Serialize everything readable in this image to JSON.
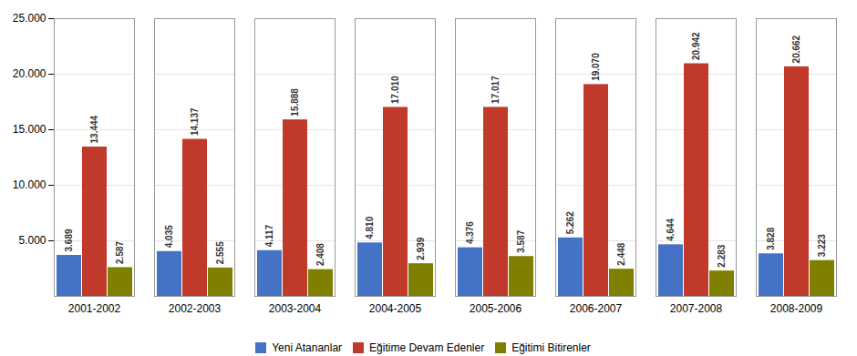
{
  "chart_data": {
    "type": "bar",
    "categories": [
      "2001-2002",
      "2002-2003",
      "2003-2004",
      "2004-2005",
      "2005-2006",
      "2006-2007",
      "2007-2008",
      "2008-2009"
    ],
    "series": [
      {
        "name": "Yeni Atananlar",
        "color": "#4472c4",
        "values": [
          3689,
          4035,
          4117,
          4810,
          4376,
          5262,
          4644,
          3828
        ],
        "value_labels": [
          "3.689",
          "4.035",
          "4.117",
          "4.810",
          "4.376",
          "5.262",
          "4.644",
          "3.828"
        ]
      },
      {
        "name": "Eğitime Devam Edenler",
        "color": "#c0392b",
        "values": [
          13444,
          14137,
          15888,
          17010,
          17017,
          19070,
          20942,
          20662
        ],
        "value_labels": [
          "13.444",
          "14.137",
          "15.888",
          "17.010",
          "17.017",
          "19.070",
          "20.942",
          "20.662"
        ]
      },
      {
        "name": "Eğitimi Bitirenler",
        "color": "#7f7f00",
        "values": [
          2587,
          2555,
          2408,
          2939,
          3587,
          2448,
          2283,
          3223
        ],
        "value_labels": [
          "2.587",
          "2.555",
          "2.408",
          "2.939",
          "3.587",
          "2.448",
          "2.283",
          "3.223"
        ]
      }
    ],
    "ylim": [
      0,
      25000
    ],
    "yticks": [
      {
        "value": 5000,
        "label": "5.000"
      },
      {
        "value": 10000,
        "label": "10.000"
      },
      {
        "value": 15000,
        "label": "15.000"
      },
      {
        "value": 20000,
        "label": "20.000"
      },
      {
        "value": 25000,
        "label": "25.000"
      }
    ],
    "grid": true,
    "legend": "bottom",
    "data_labels": true
  }
}
